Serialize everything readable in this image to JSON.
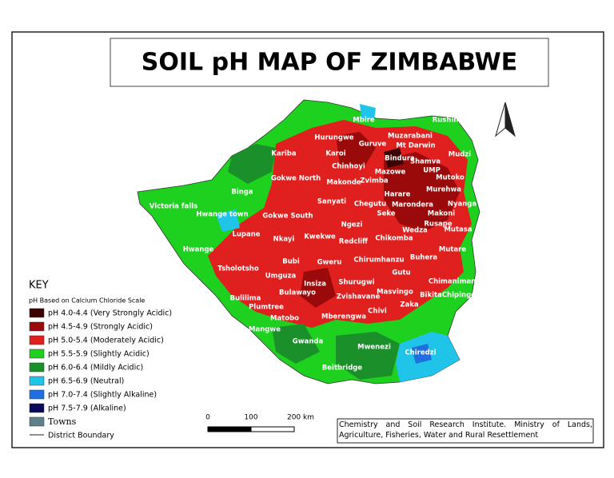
{
  "title": "SOIL pH MAP OF ZIMBABWE",
  "legend": {
    "title": "KEY",
    "subtitle": "pH Based on Calcium Chloride Scale",
    "items": [
      {
        "label": "pH 4.0-4.4 (Very Strongly Acidic)",
        "color": "#3d0000"
      },
      {
        "label": "pH 4.5-4.9 (Strongly Acidic)",
        "color": "#9b0a0a"
      },
      {
        "label": "pH 5.0-5.4 (Moderately Acidic)",
        "color": "#e01f1f"
      },
      {
        "label": "pH 5.5-5.9 (Slightly Acidic)",
        "color": "#1fd11f"
      },
      {
        "label": "pH 6.0-6.4 (Mildly Acidic)",
        "color": "#1b8f2a"
      },
      {
        "label": "pH 6.5-6.9 (Neutral)",
        "color": "#20c4e8"
      },
      {
        "label": "pH 7.0-7.4 (Slightly Alkaline)",
        "color": "#1f6fe0"
      },
      {
        "label": "pH 7.5-7.9 (Alkaline)",
        "color": "#0a0a5a"
      }
    ],
    "towns": "Towns",
    "towns_color": "#5f7f8a",
    "boundary": "District Boundary"
  },
  "scale_bar": [
    "0",
    "100",
    "200 km"
  ],
  "credit": "Chemistry and Soil Research Institute. Ministry of Lands, Agriculture, Fisheries, Water and Rural Resettlement",
  "places": [
    "Mbire",
    "Muzarabani",
    "Rushinga",
    "Hurungwe",
    "Guruve",
    "Mt Darwin",
    "Mudzi",
    "Kariba",
    "Karoi",
    "Bindura",
    "Shamva",
    "Chinhoyi",
    "Mazowe",
    "UMP",
    "Mutoko",
    "Gokwe North",
    "Makonde",
    "Zvimba",
    "Murehwa",
    "Binga",
    "Harare",
    "Sanyati",
    "Chegutu",
    "Marondera",
    "Nyanga",
    "Victoria falls",
    "Seke",
    "Makoni",
    "Hwange town",
    "Gokwe South",
    "Ngezi",
    "Rusape",
    "Mutasa",
    "Lupane",
    "Wedza",
    "Nkayi",
    "Kwekwe",
    "Redcliff",
    "Chikomba",
    "Hwange",
    "Mutare",
    "Buhera",
    "Bubi",
    "Gweru",
    "Chirumhanzu",
    "Tsholotsho",
    "Umguza",
    "Gutu",
    "Chimanimani",
    "Insiza",
    "Shurugwi",
    "Masvingo",
    "Bulawayo",
    "Zvishavane",
    "BikitaChipinge",
    "Bulilima",
    "Zaka",
    "Plumtree",
    "Chivi",
    "Matobo",
    "Mberengwa",
    "Mangwe",
    "Gwanda",
    "Mwenezi",
    "Chiredzi",
    "Beitbridge"
  ]
}
